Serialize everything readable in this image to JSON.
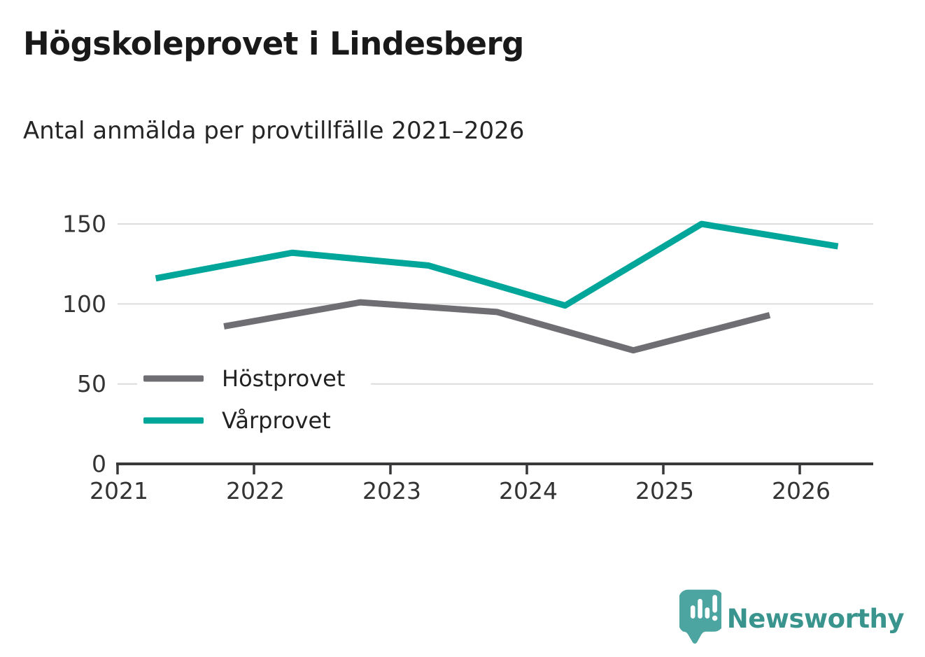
{
  "chart_data": {
    "type": "line",
    "title": "Högskoleprovet i Lindesberg",
    "subtitle": "Antal anmälda per provtillfälle 2021–2026",
    "xlabel": "",
    "ylabel": "",
    "x_tick_labels": [
      "2021",
      "2022",
      "2023",
      "2024",
      "2025",
      "2026"
    ],
    "x_tick_years": [
      2021,
      2022,
      2023,
      2024,
      2025,
      2026
    ],
    "y_tick_labels": [
      "0",
      "50",
      "100",
      "150"
    ],
    "y_tick_values": [
      0,
      50,
      100,
      150
    ],
    "xlim": [
      2021.0,
      2026.54
    ],
    "ylim": [
      0,
      167
    ],
    "grid": "horizontal",
    "legend_position": "inside-bottom-left",
    "series": [
      {
        "name": "Höstprovet",
        "color": "#6e6e73",
        "x": [
          2021.78,
          2022.78,
          2023.78,
          2024.78,
          2025.78
        ],
        "values": [
          86,
          101,
          95,
          71,
          93
        ]
      },
      {
        "name": "Vårprovet",
        "color": "#00a69a",
        "x": [
          2021.28,
          2022.28,
          2023.28,
          2024.28,
          2025.28,
          2026.28
        ],
        "values": [
          116,
          132,
          124,
          99,
          150,
          136
        ]
      }
    ],
    "colors": {
      "gridline": "#dcdcdc",
      "axis": "#38383a",
      "tick_label": "#333333",
      "legend_text": "#222222"
    }
  },
  "branding": {
    "logo_text": "Newsworthy",
    "logo_text_color": "#3a948e",
    "logo_bubble_color": "#4ca5a0",
    "logo_glyph_color": "#ffffff"
  }
}
